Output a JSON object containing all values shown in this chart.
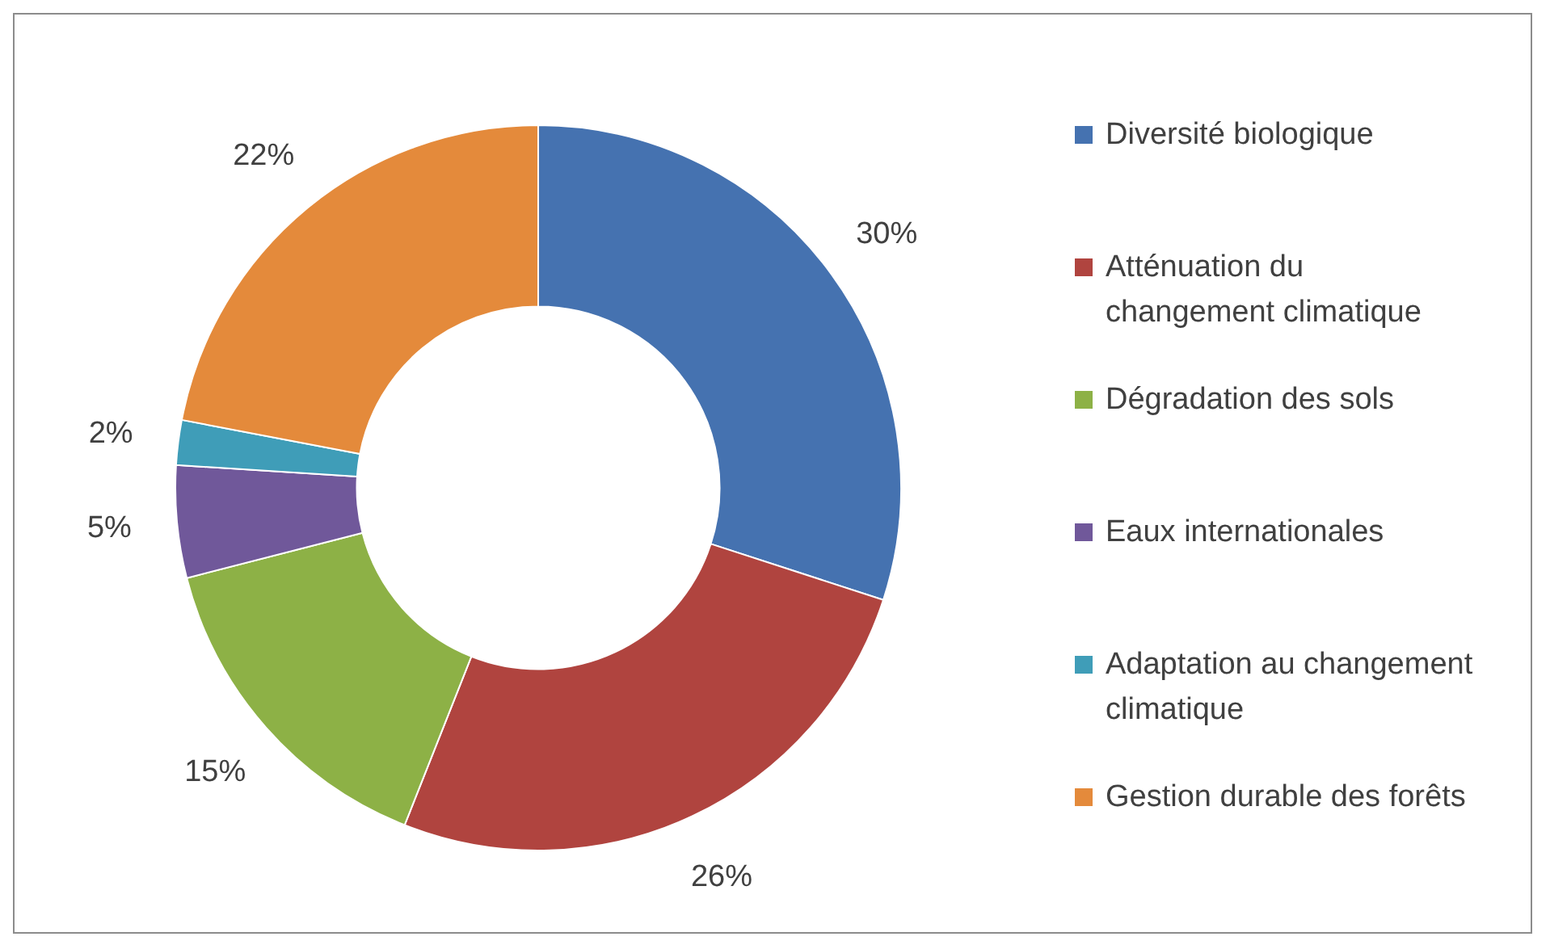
{
  "chart_data": {
    "type": "donut",
    "categories": [
      "Diversité biologique",
      "Atténuation du changement climatique",
      "Dégradation des sols",
      "Eaux internationales",
      "Adaptation au changement climatique",
      "Gestion durable des forêts"
    ],
    "values": [
      30,
      26,
      15,
      5,
      2,
      22
    ],
    "colors": [
      "#4572b0",
      "#b0443f",
      "#8db146",
      "#70589a",
      "#3f9db8",
      "#e48a3b"
    ],
    "value_labels": [
      "30%",
      "26%",
      "15%",
      "5%",
      "2%",
      "22%"
    ],
    "legend": "right"
  }
}
